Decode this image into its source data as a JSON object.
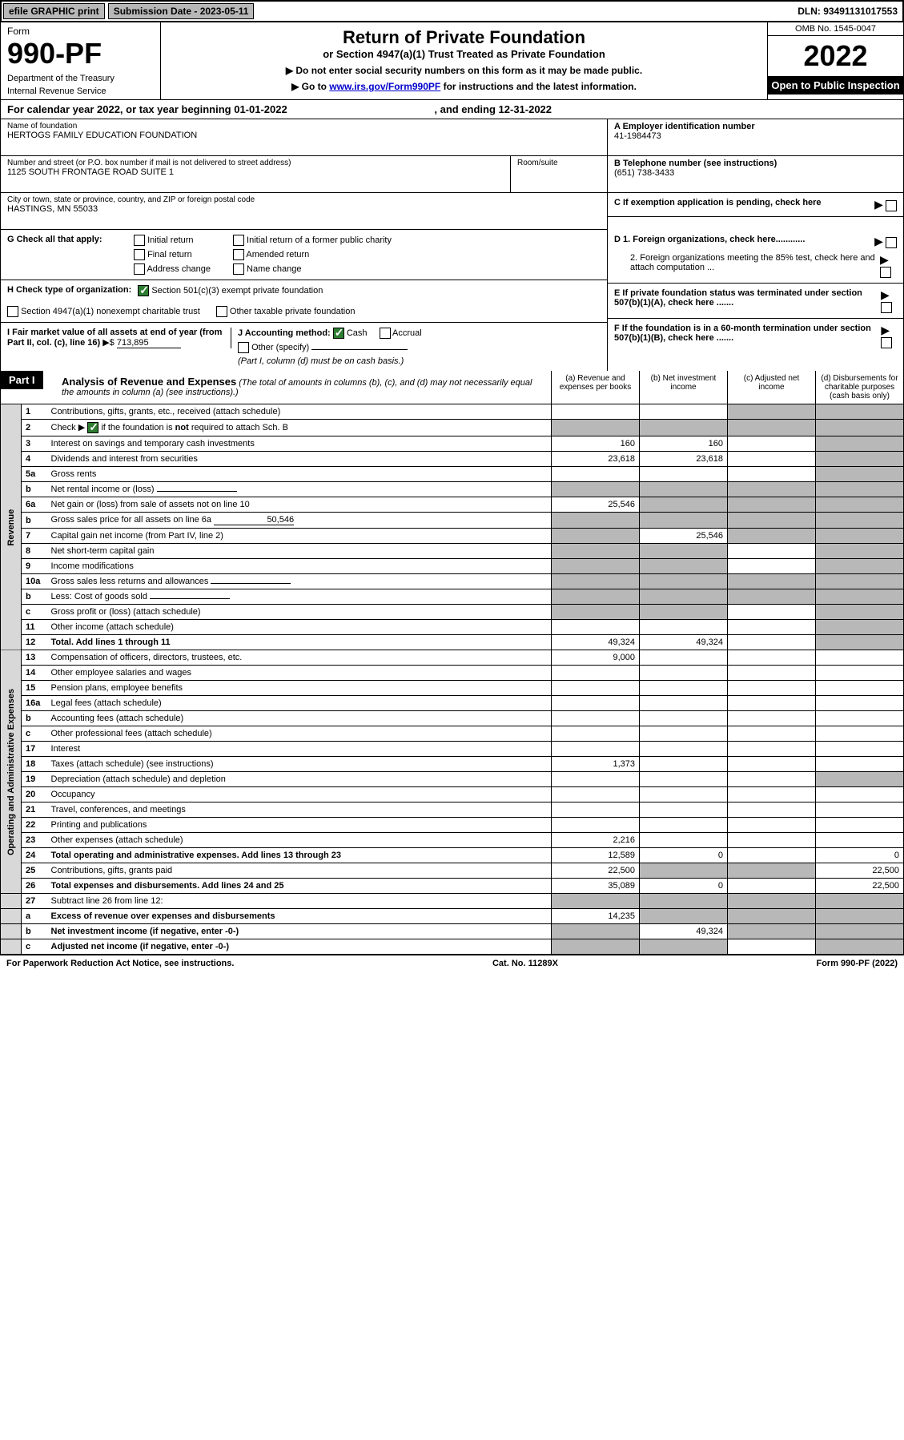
{
  "top_bar": {
    "efile": "efile GRAPHIC print",
    "submission": "Submission Date - 2023-05-11",
    "dln": "DLN: 93491131017553"
  },
  "header": {
    "form_label": "Form",
    "form_num": "990-PF",
    "dept1": "Department of the Treasury",
    "dept2": "Internal Revenue Service",
    "title": "Return of Private Foundation",
    "subtitle": "or Section 4947(a)(1) Trust Treated as Private Foundation",
    "instr1": "▶ Do not enter social security numbers on this form as it may be made public.",
    "instr2_pre": "▶ Go to ",
    "instr2_link": "www.irs.gov/Form990PF",
    "instr2_post": " for instructions and the latest information.",
    "omb": "OMB No. 1545-0047",
    "year": "2022",
    "open_public": "Open to Public Inspection"
  },
  "calendar": "For calendar year 2022, or tax year beginning 01-01-2022",
  "calendar_end": ", and ending 12-31-2022",
  "foundation": {
    "name_label": "Name of foundation",
    "name": "HERTOGS FAMILY EDUCATION FOUNDATION",
    "addr_label": "Number and street (or P.O. box number if mail is not delivered to street address)",
    "addr": "1125 SOUTH FRONTAGE ROAD SUITE 1",
    "room_label": "Room/suite",
    "city_label": "City or town, state or province, country, and ZIP or foreign postal code",
    "city": "HASTINGS, MN  55033",
    "ein_label": "A Employer identification number",
    "ein": "41-1984473",
    "phone_label": "B Telephone number (see instructions)",
    "phone": "(651) 738-3433",
    "c_label": "C If exemption application is pending, check here"
  },
  "section_g": {
    "label": "G Check all that apply:",
    "initial": "Initial return",
    "final": "Final return",
    "addr_change": "Address change",
    "initial_former": "Initial return of a former public charity",
    "amended": "Amended return",
    "name_change": "Name change"
  },
  "section_h": {
    "label": "H Check type of organization:",
    "opt1": "Section 501(c)(3) exempt private foundation",
    "opt2": "Section 4947(a)(1) nonexempt charitable trust",
    "opt3": "Other taxable private foundation"
  },
  "section_i": {
    "label": "I Fair market value of all assets at end of year (from Part II, col. (c), line 16)",
    "arrow": "▶$",
    "value": "713,895"
  },
  "section_j": {
    "label": "J Accounting method:",
    "cash": "Cash",
    "accrual": "Accrual",
    "other": "Other (specify)",
    "note": "(Part I, column (d) must be on cash basis.)"
  },
  "section_d": {
    "d1": "D 1. Foreign organizations, check here............",
    "d2": "2. Foreign organizations meeting the 85% test, check here and attach computation ..."
  },
  "section_e": "E  If private foundation status was terminated under section 507(b)(1)(A), check here .......",
  "section_f": "F  If the foundation is in a 60-month termination under section 507(b)(1)(B), check here .......",
  "part1": {
    "label": "Part I",
    "title": "Analysis of Revenue and Expenses",
    "note": " (The total of amounts in columns (b), (c), and (d) may not necessarily equal the amounts in column (a) (see instructions).)",
    "col_a": "(a) Revenue and expenses per books",
    "col_b": "(b) Net investment income",
    "col_c": "(c) Adjusted net income",
    "col_d": "(d) Disbursements for charitable purposes (cash basis only)"
  },
  "revenue_label": "Revenue",
  "expenses_label": "Operating and Administrative Expenses",
  "rows": [
    {
      "n": "1",
      "desc": "Contributions, gifts, grants, etc., received (attach schedule)",
      "a": "",
      "b": "",
      "c": "shaded",
      "d": "shaded"
    },
    {
      "n": "2",
      "desc": "Check ▶ ☑ if the foundation is not required to attach Sch. B",
      "a": "shaded",
      "b": "shaded",
      "c": "shaded",
      "d": "shaded",
      "checked": true
    },
    {
      "n": "3",
      "desc": "Interest on savings and temporary cash investments",
      "a": "160",
      "b": "160",
      "c": "",
      "d": "shaded"
    },
    {
      "n": "4",
      "desc": "Dividends and interest from securities",
      "a": "23,618",
      "b": "23,618",
      "c": "",
      "d": "shaded"
    },
    {
      "n": "5a",
      "desc": "Gross rents",
      "a": "",
      "b": "",
      "c": "",
      "d": "shaded"
    },
    {
      "n": "b",
      "desc": "Net rental income or (loss)",
      "a": "shaded",
      "b": "shaded",
      "c": "shaded",
      "d": "shaded",
      "inline": true
    },
    {
      "n": "6a",
      "desc": "Net gain or (loss) from sale of assets not on line 10",
      "a": "25,546",
      "b": "shaded",
      "c": "shaded",
      "d": "shaded"
    },
    {
      "n": "b",
      "desc": "Gross sales price for all assets on line 6a",
      "a": "shaded",
      "b": "shaded",
      "c": "shaded",
      "d": "shaded",
      "inline_val": "50,546"
    },
    {
      "n": "7",
      "desc": "Capital gain net income (from Part IV, line 2)",
      "a": "shaded",
      "b": "25,546",
      "c": "shaded",
      "d": "shaded"
    },
    {
      "n": "8",
      "desc": "Net short-term capital gain",
      "a": "shaded",
      "b": "shaded",
      "c": "",
      "d": "shaded"
    },
    {
      "n": "9",
      "desc": "Income modifications",
      "a": "shaded",
      "b": "shaded",
      "c": "",
      "d": "shaded"
    },
    {
      "n": "10a",
      "desc": "Gross sales less returns and allowances",
      "a": "shaded",
      "b": "shaded",
      "c": "shaded",
      "d": "shaded",
      "inline": true
    },
    {
      "n": "b",
      "desc": "Less: Cost of goods sold",
      "a": "shaded",
      "b": "shaded",
      "c": "shaded",
      "d": "shaded",
      "inline": true
    },
    {
      "n": "c",
      "desc": "Gross profit or (loss) (attach schedule)",
      "a": "shaded",
      "b": "shaded",
      "c": "",
      "d": "shaded"
    },
    {
      "n": "11",
      "desc": "Other income (attach schedule)",
      "a": "",
      "b": "",
      "c": "",
      "d": "shaded"
    },
    {
      "n": "12",
      "desc": "Total. Add lines 1 through 11",
      "a": "49,324",
      "b": "49,324",
      "c": "",
      "d": "shaded",
      "bold": true
    }
  ],
  "exp_rows": [
    {
      "n": "13",
      "desc": "Compensation of officers, directors, trustees, etc.",
      "a": "9,000",
      "b": "",
      "c": "",
      "d": ""
    },
    {
      "n": "14",
      "desc": "Other employee salaries and wages",
      "a": "",
      "b": "",
      "c": "",
      "d": ""
    },
    {
      "n": "15",
      "desc": "Pension plans, employee benefits",
      "a": "",
      "b": "",
      "c": "",
      "d": ""
    },
    {
      "n": "16a",
      "desc": "Legal fees (attach schedule)",
      "a": "",
      "b": "",
      "c": "",
      "d": ""
    },
    {
      "n": "b",
      "desc": "Accounting fees (attach schedule)",
      "a": "",
      "b": "",
      "c": "",
      "d": ""
    },
    {
      "n": "c",
      "desc": "Other professional fees (attach schedule)",
      "a": "",
      "b": "",
      "c": "",
      "d": ""
    },
    {
      "n": "17",
      "desc": "Interest",
      "a": "",
      "b": "",
      "c": "",
      "d": ""
    },
    {
      "n": "18",
      "desc": "Taxes (attach schedule) (see instructions)",
      "a": "1,373",
      "b": "",
      "c": "",
      "d": ""
    },
    {
      "n": "19",
      "desc": "Depreciation (attach schedule) and depletion",
      "a": "",
      "b": "",
      "c": "",
      "d": "shaded"
    },
    {
      "n": "20",
      "desc": "Occupancy",
      "a": "",
      "b": "",
      "c": "",
      "d": ""
    },
    {
      "n": "21",
      "desc": "Travel, conferences, and meetings",
      "a": "",
      "b": "",
      "c": "",
      "d": ""
    },
    {
      "n": "22",
      "desc": "Printing and publications",
      "a": "",
      "b": "",
      "c": "",
      "d": ""
    },
    {
      "n": "23",
      "desc": "Other expenses (attach schedule)",
      "a": "2,216",
      "b": "",
      "c": "",
      "d": ""
    },
    {
      "n": "24",
      "desc": "Total operating and administrative expenses. Add lines 13 through 23",
      "a": "12,589",
      "b": "0",
      "c": "",
      "d": "0",
      "bold": true
    },
    {
      "n": "25",
      "desc": "Contributions, gifts, grants paid",
      "a": "22,500",
      "b": "shaded",
      "c": "shaded",
      "d": "22,500"
    },
    {
      "n": "26",
      "desc": "Total expenses and disbursements. Add lines 24 and 25",
      "a": "35,089",
      "b": "0",
      "c": "",
      "d": "22,500",
      "bold": true
    }
  ],
  "bottom_rows": [
    {
      "n": "27",
      "desc": "Subtract line 26 from line 12:",
      "a": "shaded",
      "b": "shaded",
      "c": "shaded",
      "d": "shaded"
    },
    {
      "n": "a",
      "desc": "Excess of revenue over expenses and disbursements",
      "a": "14,235",
      "b": "shaded",
      "c": "shaded",
      "d": "shaded",
      "bold": true
    },
    {
      "n": "b",
      "desc": "Net investment income (if negative, enter -0-)",
      "a": "shaded",
      "b": "49,324",
      "c": "shaded",
      "d": "shaded",
      "bold": true
    },
    {
      "n": "c",
      "desc": "Adjusted net income (if negative, enter -0-)",
      "a": "shaded",
      "b": "shaded",
      "c": "",
      "d": "shaded",
      "bold": true
    }
  ],
  "footer": {
    "left": "For Paperwork Reduction Act Notice, see instructions.",
    "center": "Cat. No. 11289X",
    "right": "Form 990-PF (2022)"
  }
}
